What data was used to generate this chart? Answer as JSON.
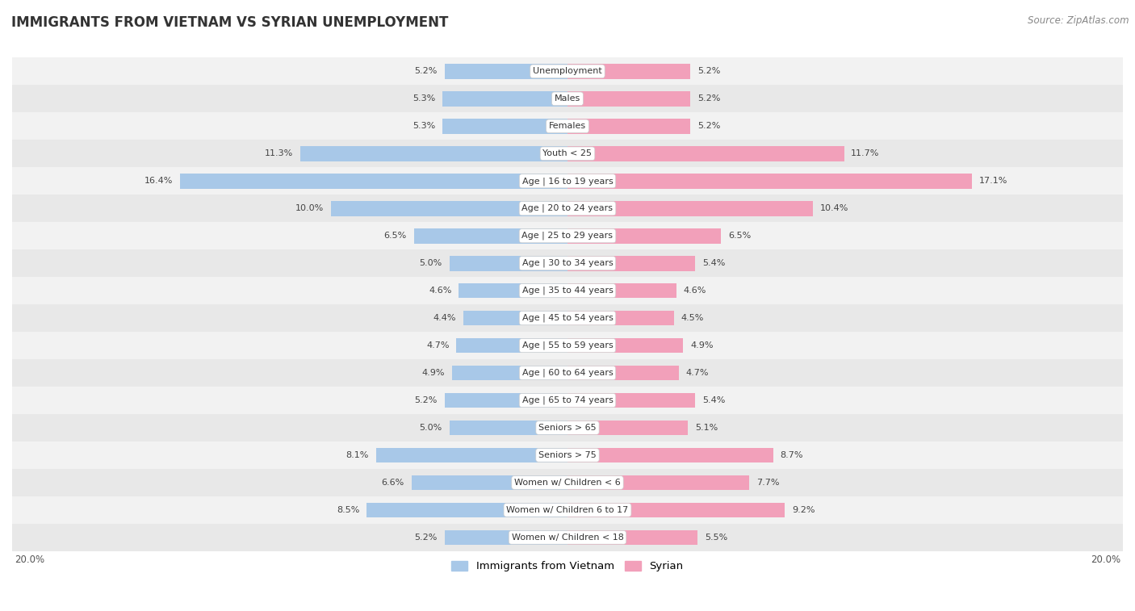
{
  "title": "IMMIGRANTS FROM VIETNAM VS SYRIAN UNEMPLOYMENT",
  "source": "Source: ZipAtlas.com",
  "categories": [
    "Unemployment",
    "Males",
    "Females",
    "Youth < 25",
    "Age | 16 to 19 years",
    "Age | 20 to 24 years",
    "Age | 25 to 29 years",
    "Age | 30 to 34 years",
    "Age | 35 to 44 years",
    "Age | 45 to 54 years",
    "Age | 55 to 59 years",
    "Age | 60 to 64 years",
    "Age | 65 to 74 years",
    "Seniors > 65",
    "Seniors > 75",
    "Women w/ Children < 6",
    "Women w/ Children 6 to 17",
    "Women w/ Children < 18"
  ],
  "vietnam_values": [
    5.2,
    5.3,
    5.3,
    11.3,
    16.4,
    10.0,
    6.5,
    5.0,
    4.6,
    4.4,
    4.7,
    4.9,
    5.2,
    5.0,
    8.1,
    6.6,
    8.5,
    5.2
  ],
  "syrian_values": [
    5.2,
    5.2,
    5.2,
    11.7,
    17.1,
    10.4,
    6.5,
    5.4,
    4.6,
    4.5,
    4.9,
    4.7,
    5.4,
    5.1,
    8.7,
    7.7,
    9.2,
    5.5
  ],
  "vietnam_color": "#A8C8E8",
  "syrian_color": "#F2A0BA",
  "background_row_odd": "#F2F2F2",
  "background_row_even": "#E8E8E8",
  "max_val": 20.0,
  "legend_vietnam": "Immigrants from Vietnam",
  "legend_syrian": "Syrian",
  "title_fontsize": 12,
  "source_fontsize": 8.5,
  "label_fontsize": 8,
  "value_fontsize": 8
}
